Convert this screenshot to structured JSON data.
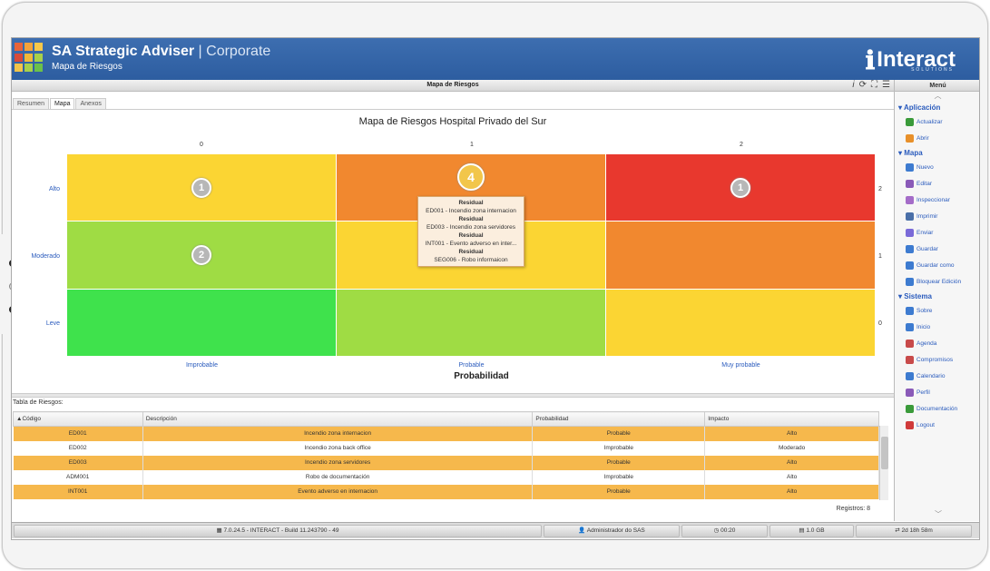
{
  "header": {
    "app_name": "SA Strategic Adviser",
    "edition": "| Corporate",
    "subtitle": "Mapa de Riesgos",
    "brand": "Interact",
    "brand_tag": "SOLUTIONS"
  },
  "titlebar": {
    "title": "Mapa de Riesgos",
    "icons": [
      "info-icon",
      "refresh-icon",
      "expand-icon",
      "list-icon"
    ]
  },
  "tabs": [
    {
      "label": "Resumen"
    },
    {
      "label": "Mapa",
      "active": true
    },
    {
      "label": "Anexos"
    }
  ],
  "map": {
    "title": "Mapa de Riesgos Hospital Privado del Sur",
    "col_numbers": [
      "0",
      "1",
      "2"
    ],
    "row_numbers": [
      "2",
      "1",
      "0"
    ],
    "row_labels": [
      "Alto",
      "Moderado",
      "Leve"
    ],
    "col_labels": [
      "Improbable",
      "Probable",
      "Muy probable"
    ],
    "x_axis": "Probabilidad",
    "cells": [
      {
        "row": "Alto",
        "col": "Improbable",
        "color": "#fbd533",
        "count": "1"
      },
      {
        "row": "Alto",
        "col": "Probable",
        "color": "#f1882f",
        "count": "4"
      },
      {
        "row": "Alto",
        "col": "Muy probable",
        "color": "#e8382e",
        "count": "1"
      },
      {
        "row": "Moderado",
        "col": "Improbable",
        "color": "#9fdc44",
        "count": "2"
      },
      {
        "row": "Moderado",
        "col": "Probable",
        "color": "#fbd533",
        "count": ""
      },
      {
        "row": "Moderado",
        "col": "Muy probable",
        "color": "#f1882f",
        "count": ""
      },
      {
        "row": "Leve",
        "col": "Improbable",
        "color": "#3fe24c",
        "count": ""
      },
      {
        "row": "Leve",
        "col": "Probable",
        "color": "#9fdc44",
        "count": ""
      },
      {
        "row": "Leve",
        "col": "Muy probable",
        "color": "#fbd533",
        "count": ""
      }
    ],
    "tooltip": [
      {
        "head": "Residual",
        "item": "ED001 - Incendio zona internacion"
      },
      {
        "head": "Residual",
        "item": "ED003 - Incendio zona servidores"
      },
      {
        "head": "Residual",
        "item": "INT001 - Evento adverso en inter..."
      },
      {
        "head": "Residual",
        "item": "SEG006 - Robo informaicon"
      }
    ]
  },
  "table": {
    "caption": "Tabla de Riesgos:",
    "columns": [
      "Código",
      "Descripción",
      "Probabilidad",
      "Impacto"
    ],
    "rows": [
      [
        "ED001",
        "Incendio zona internacion",
        "Probable",
        "Alto"
      ],
      [
        "ED002",
        "Incendio zona back office",
        "Improbable",
        "Moderado"
      ],
      [
        "ED003",
        "Incendio zona servidores",
        "Probable",
        "Alto"
      ],
      [
        "ADM001",
        "Robo de documentación",
        "Improbable",
        "Alto"
      ],
      [
        "INT001",
        "Evento adverso en internacion",
        "Probable",
        "Alto"
      ]
    ],
    "records": "Registros: 8"
  },
  "menu": {
    "title": "Menú",
    "sections": [
      {
        "title": "Aplicación",
        "items": [
          {
            "label": "Actualizar",
            "icon": "refresh-icon",
            "color": "#3a9a3a"
          },
          {
            "label": "Abrir",
            "icon": "folder-icon",
            "color": "#e8902a"
          }
        ]
      },
      {
        "title": "Mapa",
        "items": [
          {
            "label": "Nuevo",
            "icon": "new-icon",
            "color": "#3d7bd0"
          },
          {
            "label": "Editar",
            "icon": "edit-icon",
            "color": "#8a5ab8"
          },
          {
            "label": "Inspeccionar",
            "icon": "inspect-icon",
            "color": "#a46cc8"
          },
          {
            "label": "Imprimir",
            "icon": "print-icon",
            "color": "#4a6fa8"
          },
          {
            "label": "Enviar",
            "icon": "send-icon",
            "color": "#7a6ad8"
          },
          {
            "label": "Guardar",
            "icon": "save-icon",
            "color": "#3d7bd0"
          },
          {
            "label": "Guardar como",
            "icon": "save-as-icon",
            "color": "#3d7bd0"
          },
          {
            "label": "Bloquear Edición",
            "icon": "lock-icon",
            "color": "#3d7bd0"
          }
        ]
      },
      {
        "title": "Sistema",
        "items": [
          {
            "label": "Sobre",
            "icon": "info-icon",
            "color": "#3d7bd0"
          },
          {
            "label": "Inicio",
            "icon": "home-icon",
            "color": "#3d7bd0"
          },
          {
            "label": "Agenda",
            "icon": "agenda-icon",
            "color": "#c84a4a"
          },
          {
            "label": "Compromisos",
            "icon": "briefcase-icon",
            "color": "#c84a4a"
          },
          {
            "label": "Calendario",
            "icon": "calendar-icon",
            "color": "#3d7bd0"
          },
          {
            "label": "Perfil",
            "icon": "key-icon",
            "color": "#8a5ab8"
          },
          {
            "label": "Documentación",
            "icon": "docs-icon",
            "color": "#3a9a3a"
          },
          {
            "label": "Logout",
            "icon": "power-icon",
            "color": "#d03a3a"
          }
        ]
      }
    ]
  },
  "status": {
    "version": "7.0.24.5 - INTERACT - Build 11.243790 - 49",
    "user": "Administrador do SAS",
    "time": "00:20",
    "memory": "1.0 GB",
    "uptime": "2d 18h 58m"
  }
}
